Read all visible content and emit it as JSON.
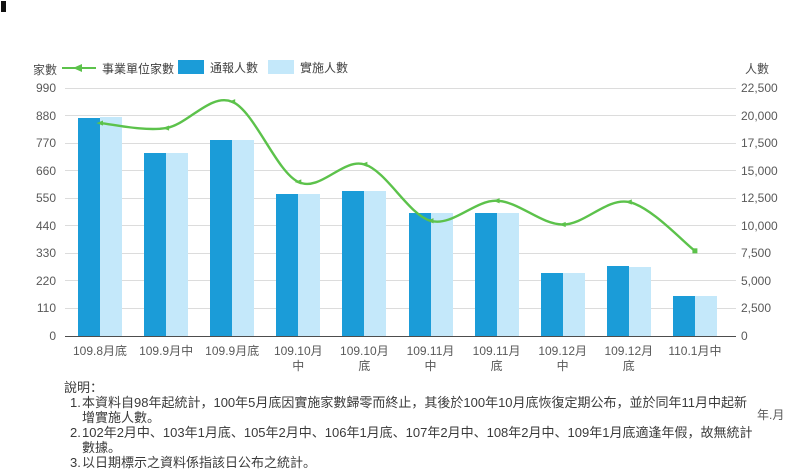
{
  "legend": [
    {
      "marker": "line-arrow",
      "label": "事業單位家數",
      "color": "#5CC24B"
    },
    {
      "marker": "square",
      "label": "通報人數",
      "color": "#1B9CD8"
    },
    {
      "marker": "square",
      "label": "實施人數",
      "color": "#C4E8FA"
    }
  ],
  "chart_data": {
    "type": "bar",
    "title": "",
    "categories": [
      "109.8月底",
      "109.9月中",
      "109.9月底",
      "109.10月中",
      "109.10月底",
      "109.11月中",
      "109.11月底",
      "109.12月中",
      "109.12月底",
      "110.1月中"
    ],
    "x_label_lines": [
      [
        "109.8月底"
      ],
      [
        "109.9月中"
      ],
      [
        "109.9月底"
      ],
      [
        "109.10月",
        "中"
      ],
      [
        "109.10月",
        "底"
      ],
      [
        "109.11月",
        "中"
      ],
      [
        "109.11月",
        "底"
      ],
      [
        "109.12月",
        "中"
      ],
      [
        "109.12月",
        "底"
      ],
      [
        "110.1月中"
      ]
    ],
    "series": [
      {
        "name": "通報人數",
        "type": "bar",
        "axis": "right",
        "color": "#1B9CD8",
        "values": [
          19750,
          16600,
          17800,
          12850,
          13150,
          11200,
          11150,
          5750,
          6350,
          3650
        ]
      },
      {
        "name": "實施人數",
        "type": "bar",
        "axis": "right",
        "color": "#C4E8FA",
        "values": [
          19850,
          16600,
          17800,
          12850,
          13150,
          11200,
          11150,
          5750,
          6300,
          3650
        ]
      },
      {
        "name": "事業單位家數",
        "type": "line",
        "axis": "left",
        "color": "#5CC24B",
        "values": [
          850,
          830,
          935,
          615,
          685,
          460,
          540,
          445,
          535,
          340
        ]
      }
    ],
    "left_axis": {
      "title": "家數",
      "min": 0,
      "max": 990,
      "step": 110,
      "ticks": [
        "0",
        "110",
        "220",
        "330",
        "440",
        "550",
        "660",
        "770",
        "880",
        "990"
      ]
    },
    "right_axis": {
      "title": "人數",
      "min": 0,
      "max": 22500,
      "step": 2500,
      "ticks": [
        "0",
        "2,500",
        "5,000",
        "7,500",
        "10,000",
        "12,500",
        "15,000",
        "17,500",
        "20,000",
        "22,500"
      ]
    },
    "x_unit": "年.月",
    "grid": "horizontal",
    "legend_position": "top"
  },
  "footnotes": {
    "title": "說明：",
    "items": [
      "本資料自98年起統計，100年5月底因實施家數歸零而終止，其後於100年10月底恢復定期公布，並於同年11月中起新增實施人數。",
      "102年2月中、103年1月底、105年2月中、106年1月底、107年2月中、108年2月中、109年1月底適逢年假，故無統計數據。",
      "以日期標示之資料係指該日公布之統計。"
    ]
  }
}
